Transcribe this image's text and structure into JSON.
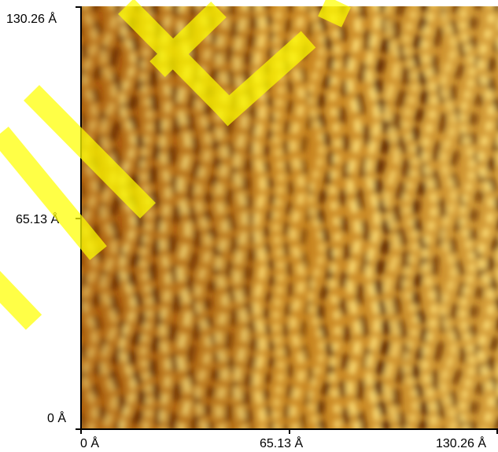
{
  "image": {
    "description_free": true,
    "colors": {
      "dark": "#5a2500",
      "mid": "#c07a1a",
      "light": "#ffe27a",
      "watermark": "#ffff00"
    }
  },
  "axes": {
    "y_ticks": [
      "130.26 Å",
      "65.13 Å",
      "0 Å"
    ],
    "x_ticks": [
      "0 Å",
      "65.13 Å",
      "130.26 Å"
    ]
  }
}
